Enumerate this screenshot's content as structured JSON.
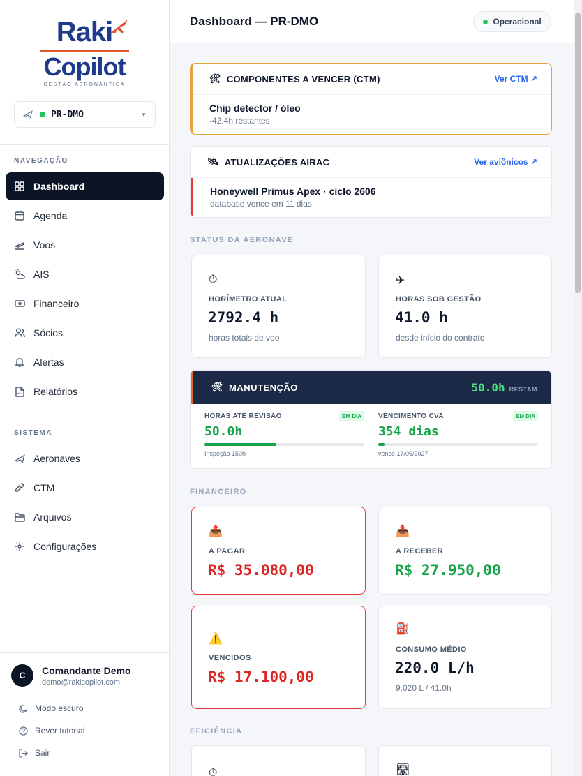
{
  "brand": {
    "word1": "Raki",
    "word2": "Copilot",
    "tagline": "GESTÃO AERONÁUTICA"
  },
  "aircraft_select": {
    "value": "PR-DMO"
  },
  "nav": {
    "section": "NAVEGAÇÃO",
    "items": [
      {
        "label": "Dashboard",
        "icon": "grid-icon"
      },
      {
        "label": "Agenda",
        "icon": "calendar-icon"
      },
      {
        "label": "Voos",
        "icon": "takeoff-icon"
      },
      {
        "label": "AIS",
        "icon": "weather-icon"
      },
      {
        "label": "Financeiro",
        "icon": "banknote-icon"
      },
      {
        "label": "Sócios",
        "icon": "users-icon"
      },
      {
        "label": "Alertas",
        "icon": "bell-icon"
      },
      {
        "label": "Relatórios",
        "icon": "report-icon"
      }
    ]
  },
  "system": {
    "section": "SISTEMA",
    "items": [
      {
        "label": "Aeronaves",
        "icon": "plane-icon"
      },
      {
        "label": "CTM",
        "icon": "wrench-icon"
      },
      {
        "label": "Arquivos",
        "icon": "folder-icon"
      },
      {
        "label": "Configurações",
        "icon": "gear-icon"
      }
    ]
  },
  "user": {
    "initial": "C",
    "name": "Comandante Demo",
    "email": "demo@rakicopilot.com"
  },
  "utilities": {
    "dark_mode": "Modo escuro",
    "tutorial": "Rever tutorial",
    "logout": "Sair"
  },
  "header": {
    "title": "Dashboard — PR-DMO",
    "status": "Operacional"
  },
  "ctm_alert": {
    "title": "COMPONENTES A VENCER (CTM)",
    "link": "Ver CTM ↗",
    "item": "Chip detector / óleo",
    "detail": "-42.4h restantes",
    "accent": "#e8a33a"
  },
  "airac_alert": {
    "title": "ATUALIZAÇÕES AIRAC",
    "link": "Ver aviônicos ↗",
    "item": "Honeywell Primus Apex · ciclo 2606",
    "detail": "database vence em 11 dias"
  },
  "status_section": "STATUS DA AERONAVE",
  "horimetro": {
    "label": "HORÍMETRO ATUAL",
    "value": "2792.4 h",
    "sub": "horas totais de voo"
  },
  "horas_gestao": {
    "label": "HORAS SOB GESTÃO",
    "value": "41.0 h",
    "sub": "desde início do contrato"
  },
  "maintenance": {
    "title": "MANUTENÇÃO",
    "remaining": "50.0h",
    "remaining_label": "RESTAM",
    "revision": {
      "label": "HORAS ATÉ REVISÃO",
      "badge": "EM DIA",
      "value": "50.0h",
      "progress": 0.45,
      "note": "Inspeção 150h"
    },
    "cva": {
      "label": "VENCIMENTO CVA",
      "badge": "EM DIA",
      "value": "354 dias",
      "progress": 0.04,
      "note": "vence 17/06/2027"
    }
  },
  "finance_section": "FINANCEIRO",
  "a_pagar": {
    "label": "A PAGAR",
    "value": "R$ 35.080,00",
    "color": "#dc2626"
  },
  "a_receber": {
    "label": "A RECEBER",
    "value": "R$ 27.950,00",
    "color": "#16a34a"
  },
  "vencidos": {
    "label": "VENCIDOS",
    "value": "R$ 17.100,00",
    "color": "#dc2626"
  },
  "consumo": {
    "label": "CONSUMO MÉDIO",
    "value": "220.0 L/h",
    "sub": "9.020 L / 41.0h"
  },
  "efficiency_section": "EFICIÊNCIA"
}
